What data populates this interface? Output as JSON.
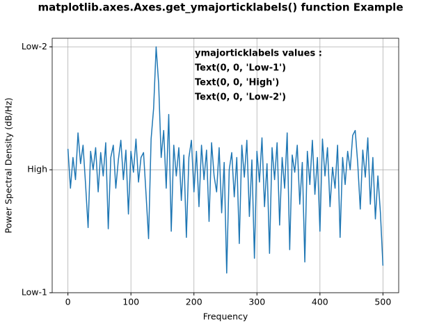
{
  "chart_data": {
    "type": "line",
    "title": "matplotlib.axes.Axes.get_ymajorticklabels() function Example",
    "x_label": "Frequency",
    "y_label": "Power Spectral Density (dB/Hz)",
    "annotations": [
      "ymajorticklabels values :",
      "Text(0, 0, 'Low-1')",
      "Text(0, 0, 'High')",
      "Text(0, 0, 'Low-2')"
    ],
    "x": [
      0,
      4,
      8,
      12,
      16,
      20,
      24,
      28,
      32,
      36,
      40,
      44,
      48,
      52,
      56,
      60,
      64,
      68,
      72,
      76,
      80,
      84,
      88,
      92,
      96,
      100,
      104,
      108,
      112,
      116,
      120,
      124,
      128,
      132,
      136,
      140,
      144,
      148,
      152,
      156,
      160,
      164,
      168,
      172,
      176,
      180,
      184,
      188,
      192,
      196,
      200,
      204,
      208,
      212,
      216,
      220,
      224,
      228,
      232,
      236,
      240,
      244,
      248,
      252,
      256,
      260,
      264,
      268,
      272,
      276,
      280,
      284,
      288,
      292,
      296,
      300,
      304,
      308,
      312,
      316,
      320,
      324,
      328,
      332,
      336,
      340,
      344,
      348,
      352,
      356,
      360,
      364,
      368,
      372,
      376,
      380,
      384,
      388,
      392,
      396,
      400,
      404,
      408,
      412,
      416,
      420,
      424,
      428,
      432,
      436,
      440,
      444,
      448,
      452,
      456,
      460,
      464,
      468,
      472,
      476,
      480,
      484,
      488,
      492,
      496,
      500
    ],
    "series": [
      {
        "color": "#1f77b4",
        "values": [
          -28.3,
          -31.5,
          -29.0,
          -30.8,
          -27.0,
          -29.5,
          -28.0,
          -31.2,
          -34.7,
          -28.5,
          -30.0,
          -28.2,
          -31.8,
          -28.6,
          -30.5,
          -27.8,
          -34.8,
          -29.0,
          -28.0,
          -31.5,
          -29.2,
          -27.6,
          -30.8,
          -28.4,
          -33.6,
          -28.5,
          -30.2,
          -27.5,
          -31.0,
          -29.0,
          -28.6,
          -32.0,
          -35.6,
          -27.5,
          -25.0,
          -20.0,
          -23.0,
          -29.0,
          -26.8,
          -31.5,
          -25.5,
          -35.0,
          -28.0,
          -30.5,
          -28.2,
          -32.5,
          -28.8,
          -35.5,
          -29.0,
          -27.6,
          -31.8,
          -28.5,
          -33.0,
          -28.0,
          -30.8,
          -28.4,
          -34.2,
          -27.8,
          -30.5,
          -31.8,
          -28.2,
          -33.5,
          -29.4,
          -38.4,
          -30.0,
          -28.6,
          -32.2,
          -29.0,
          -36.0,
          -28.0,
          -30.6,
          -27.6,
          -33.8,
          -29.2,
          -37.2,
          -28.5,
          -31.0,
          -27.4,
          -33.0,
          -29.5,
          -36.8,
          -28.2,
          -30.8,
          -27.8,
          -34.5,
          -29.0,
          -31.5,
          -27.0,
          -36.5,
          -28.8,
          -30.2,
          -28.0,
          -32.8,
          -29.4,
          -37.5,
          -28.5,
          -31.2,
          -27.6,
          -32.0,
          -29.0,
          -35.0,
          -27.5,
          -30.5,
          -28.2,
          -33.0,
          -29.8,
          -31.5,
          -28.0,
          -35.5,
          -29.0,
          -31.2,
          -28.5,
          -30.0,
          -27.2,
          -26.8,
          -29.5,
          -33.2,
          -28.4,
          -30.6,
          -27.4,
          -32.8,
          -29.0,
          -34.0,
          -30.5,
          -33.5,
          -37.8
        ]
      }
    ],
    "xlim": [
      -25,
      525
    ],
    "xticks": [
      0,
      100,
      200,
      300,
      400,
      500
    ],
    "ylim": [
      -40,
      -19.3
    ],
    "yticks": [
      {
        "value": -40,
        "label": "Low-1"
      },
      {
        "value": -30,
        "label": "High"
      },
      {
        "value": -20,
        "label": "Low-2"
      }
    ],
    "grid": true
  }
}
